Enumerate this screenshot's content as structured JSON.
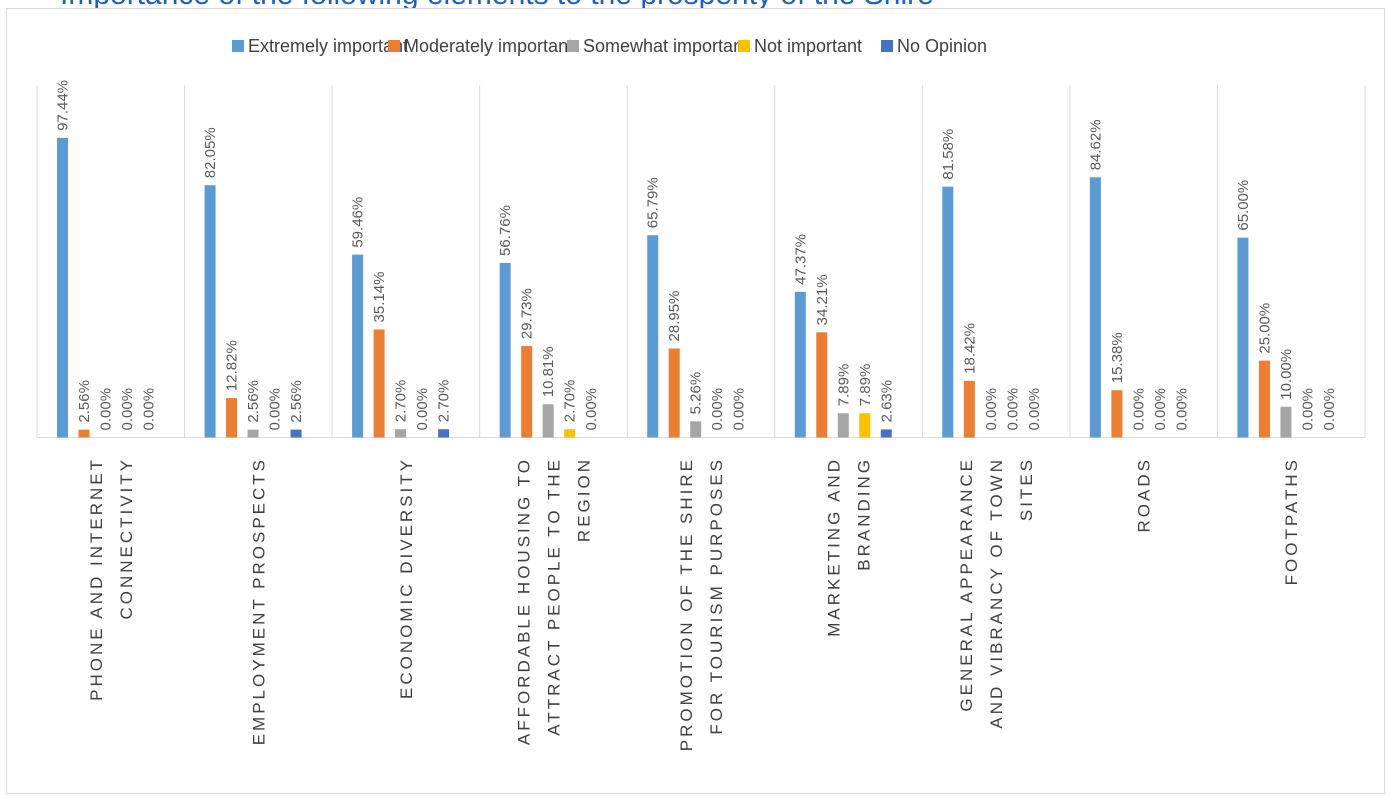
{
  "title": "Importance of the following elements to the prosperity of the Shire",
  "chart_data": {
    "type": "bar",
    "categories": [
      "PHONE AND INTERNET CONNECTIVITY",
      "EMPLOYMENT PROSPECTS",
      "ECONOMIC DIVERSITY",
      "AFFORDABLE HOUSING TO ATTRACT PEOPLE TO THE REGION",
      "PROMOTION OF THE SHIRE FOR TOURISM PURPOSES",
      "MARKETING AND BRANDING",
      "GENERAL APPEARANCE AND VIBRANCY OF TOWN SITES",
      "ROADS",
      "FOOTPATHS"
    ],
    "category_lines": [
      [
        "PHONE AND INTERNET",
        "CONNECTIVITY"
      ],
      [
        "EMPLOYMENT PROSPECTS"
      ],
      [
        "ECONOMIC DIVERSITY"
      ],
      [
        "AFFORDABLE HOUSING TO",
        "ATTRACT PEOPLE TO THE",
        "REGION"
      ],
      [
        "PROMOTION OF THE SHIRE",
        "FOR TOURISM PURPOSES"
      ],
      [
        "MARKETING AND",
        "BRANDING"
      ],
      [
        "GENERAL APPEARANCE",
        "AND VIBRANCY OF TOWN",
        "SITES"
      ],
      [
        "ROADS"
      ],
      [
        "FOOTPATHS"
      ]
    ],
    "series": [
      {
        "name": "Extremely important",
        "color": "#5b9bd5",
        "values": [
          97.44,
          82.05,
          59.46,
          56.76,
          65.79,
          47.37,
          81.58,
          84.62,
          65.0
        ]
      },
      {
        "name": "Moderately important",
        "color": "#ed7d31",
        "values": [
          2.56,
          12.82,
          35.14,
          29.73,
          28.95,
          34.21,
          18.42,
          15.38,
          25.0
        ]
      },
      {
        "name": "Somewhat important",
        "color": "#a5a5a5",
        "values": [
          0.0,
          2.56,
          2.7,
          10.81,
          5.26,
          7.89,
          0.0,
          0.0,
          10.0
        ]
      },
      {
        "name": "Not important",
        "color": "#ffc000",
        "values": [
          0.0,
          0.0,
          0.0,
          2.7,
          0.0,
          7.89,
          0.0,
          0.0,
          0.0
        ]
      },
      {
        "name": "No Opinion",
        "color": "#4472c4",
        "values": [
          0.0,
          2.56,
          2.7,
          0.0,
          0.0,
          2.63,
          0.0,
          0.0,
          0.0
        ]
      }
    ],
    "data_labels": [
      [
        "97.44%",
        "2.56%",
        "0.00%",
        "0.00%",
        "0.00%"
      ],
      [
        "82.05%",
        "12.82%",
        "2.56%",
        "0.00%",
        "2.56%"
      ],
      [
        "59.46%",
        "35.14%",
        "2.70%",
        "0.00%",
        "2.70%"
      ],
      [
        "56.76%",
        "29.73%",
        "10.81%",
        "2.70%",
        "0.00%"
      ],
      [
        "65.79%",
        "28.95%",
        "5.26%",
        "0.00%",
        "0.00%"
      ],
      [
        "47.37%",
        "34.21%",
        "7.89%",
        "7.89%",
        "2.63%"
      ],
      [
        "81.58%",
        "18.42%",
        "0.00%",
        "0.00%",
        "0.00%"
      ],
      [
        "84.62%",
        "15.38%",
        "0.00%",
        "0.00%",
        "0.00%"
      ],
      [
        "65.00%",
        "25.00%",
        "10.00%",
        "0.00%",
        "0.00%"
      ]
    ],
    "ylim": [
      0,
      100
    ],
    "grid": false,
    "legend_position": "top"
  }
}
